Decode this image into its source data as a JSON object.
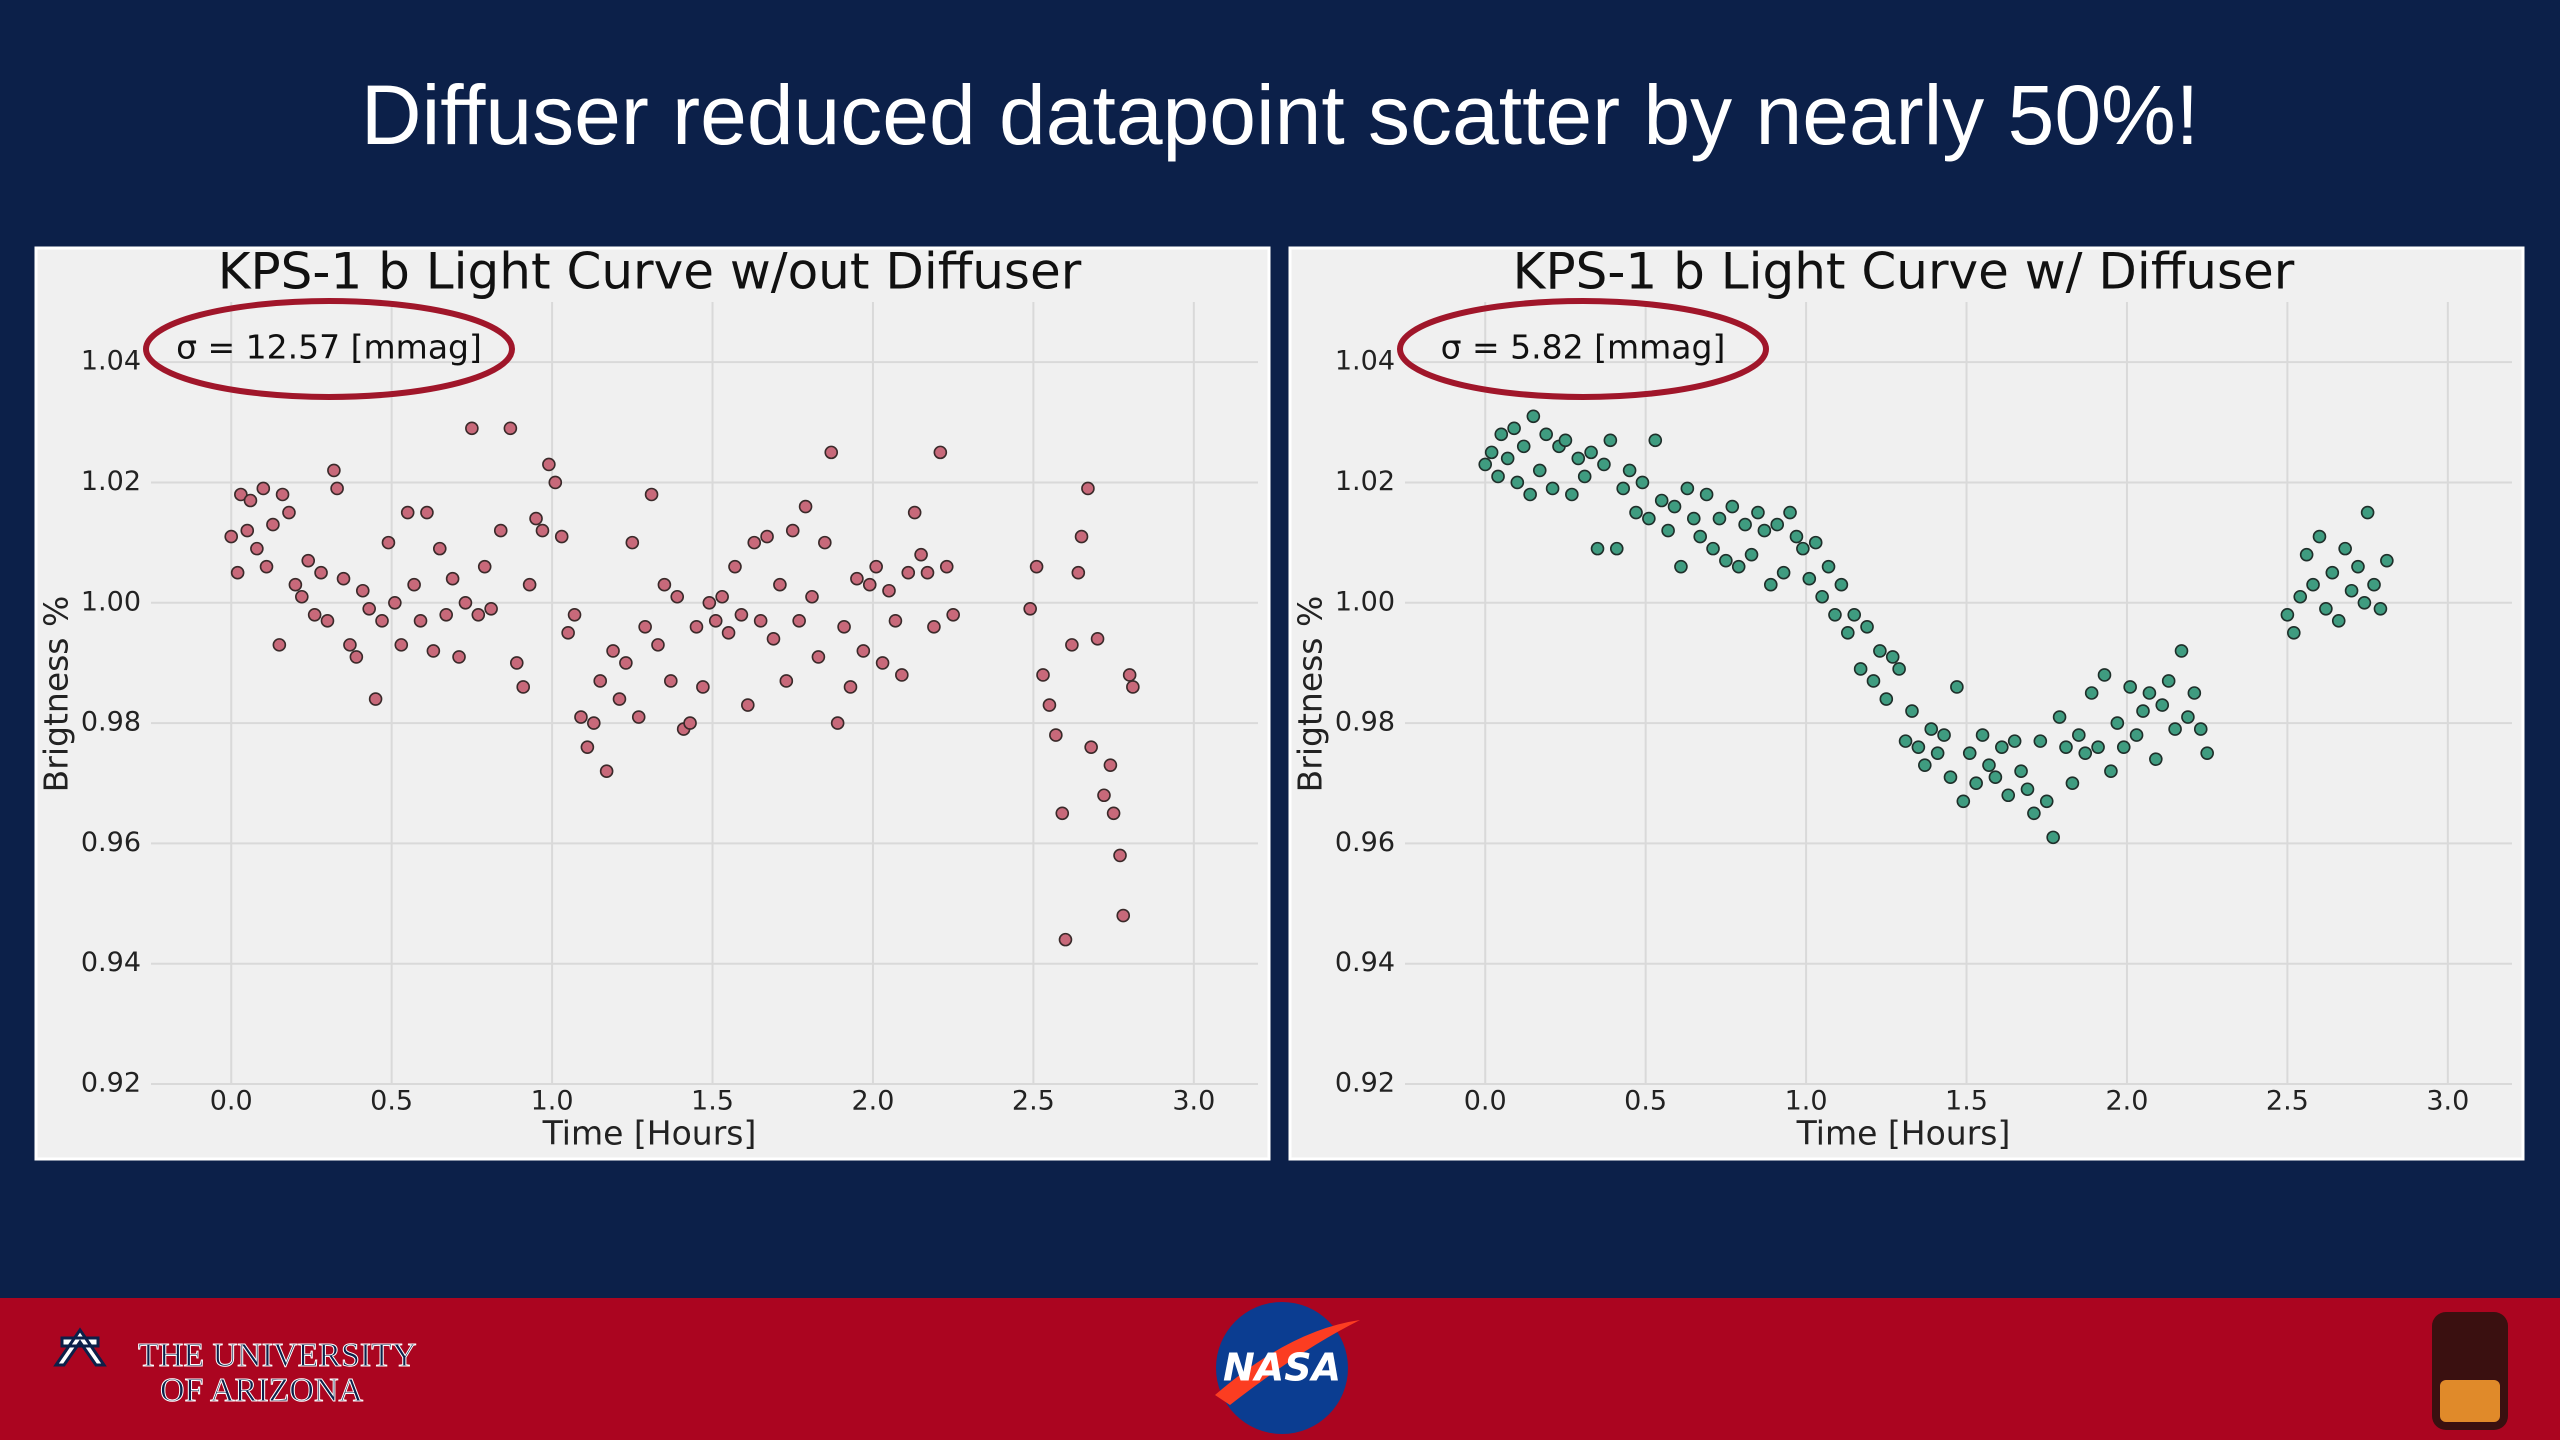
{
  "title": "Diffuser reduced datapoint scatter by nearly 50%!",
  "chart_data": [
    {
      "type": "scatter",
      "title": "KPS-1 b Light Curve w/out Diffuser",
      "annotation": "σ = 12.57 [mmag]",
      "xlabel": "Time [Hours]",
      "ylabel": "Brigtness %",
      "color": "#c8697a",
      "edgecolor": "#3a2a2a",
      "x": [
        0.0,
        0.02,
        0.03,
        0.05,
        0.06,
        0.08,
        0.1,
        0.11,
        0.13,
        0.15,
        0.16,
        0.18,
        0.2,
        0.22,
        0.24,
        0.26,
        0.28,
        0.3,
        0.32,
        0.33,
        0.35,
        0.37,
        0.39,
        0.41,
        0.43,
        0.45,
        0.47,
        0.49,
        0.51,
        0.53,
        0.55,
        0.57,
        0.59,
        0.61,
        0.63,
        0.65,
        0.67,
        0.69,
        0.71,
        0.73,
        0.75,
        0.77,
        0.79,
        0.81,
        0.84,
        0.87,
        0.89,
        0.91,
        0.93,
        0.95,
        0.97,
        0.99,
        1.01,
        1.03,
        1.05,
        1.07,
        1.09,
        1.11,
        1.13,
        1.15,
        1.17,
        1.19,
        1.21,
        1.23,
        1.25,
        1.27,
        1.29,
        1.31,
        1.33,
        1.35,
        1.37,
        1.39,
        1.41,
        1.43,
        1.45,
        1.47,
        1.49,
        1.51,
        1.53,
        1.55,
        1.57,
        1.59,
        1.61,
        1.63,
        1.65,
        1.67,
        1.69,
        1.71,
        1.73,
        1.75,
        1.77,
        1.79,
        1.81,
        1.83,
        1.85,
        1.87,
        1.89,
        1.91,
        1.93,
        1.95,
        1.97,
        1.99,
        2.01,
        2.03,
        2.05,
        2.07,
        2.09,
        2.11,
        2.13,
        2.15,
        2.17,
        2.19,
        2.21,
        2.23,
        2.25,
        2.49,
        2.51,
        2.53,
        2.55,
        2.57,
        2.59,
        2.6,
        2.62,
        2.64,
        2.65,
        2.67,
        2.68,
        2.7,
        2.72,
        2.74,
        2.75,
        2.77,
        2.78,
        2.8,
        2.81
      ],
      "values": [
        1.011,
        1.005,
        1.018,
        1.012,
        1.017,
        1.009,
        1.019,
        1.006,
        1.013,
        0.993,
        1.018,
        1.015,
        1.003,
        1.001,
        1.007,
        0.998,
        1.005,
        0.997,
        1.022,
        1.019,
        1.004,
        0.993,
        0.991,
        1.002,
        0.999,
        0.984,
        0.997,
        1.01,
        1.0,
        0.993,
        1.015,
        1.003,
        0.997,
        1.015,
        0.992,
        1.009,
        0.998,
        1.004,
        0.991,
        1.0,
        1.029,
        0.998,
        1.006,
        0.999,
        1.012,
        1.029,
        0.99,
        0.986,
        1.003,
        1.014,
        1.012,
        1.023,
        1.02,
        1.011,
        0.995,
        0.998,
        0.981,
        0.976,
        0.98,
        0.987,
        0.972,
        0.992,
        0.984,
        0.99,
        1.01,
        0.981,
        0.996,
        1.018,
        0.993,
        1.003,
        0.987,
        1.001,
        0.979,
        0.98,
        0.996,
        0.986,
        1.0,
        0.997,
        1.001,
        0.995,
        1.006,
        0.998,
        0.983,
        1.01,
        0.997,
        1.011,
        0.994,
        1.003,
        0.987,
        1.012,
        0.997,
        1.016,
        1.001,
        0.991,
        1.01,
        1.025,
        0.98,
        0.996,
        0.986,
        1.004,
        0.992,
        1.003,
        1.006,
        0.99,
        1.002,
        0.997,
        0.988,
        1.005,
        1.015,
        1.008,
        1.005,
        0.996,
        1.025,
        1.006,
        0.998,
        0.999,
        1.006,
        0.988,
        0.983,
        0.978,
        0.965,
        0.944,
        0.993,
        1.005,
        1.011,
        1.019,
        0.976,
        0.994,
        0.968,
        0.973,
        0.965,
        0.958,
        0.948,
        0.988,
        0.986
      ],
      "xlim": [
        -0.25,
        3.2
      ],
      "ylim": [
        0.92,
        1.05
      ],
      "xticks": [
        {
          "value": 0,
          "label": "0.0"
        },
        0.5,
        {
          "value": 1,
          "label": "1.0"
        },
        1.5,
        {
          "value": 2,
          "label": "2.0"
        },
        2.5,
        {
          "value": 3,
          "label": "3.0"
        }
      ],
      "yticks": [
        0.92,
        0.94,
        0.96,
        0.98,
        {
          "value": 1,
          "label": "1.00"
        },
        1.02,
        1.04
      ],
      "grid": true
    },
    {
      "type": "scatter",
      "title": "KPS-1 b Light Curve w/ Diffuser",
      "annotation": "σ = 5.82 [mmag]",
      "xlabel": "Time [Hours]",
      "ylabel": "Brigtness %",
      "color": "#3f9c80",
      "edgecolor": "#1f2f2a",
      "x": [
        0.0,
        0.02,
        0.04,
        0.05,
        0.07,
        0.09,
        0.1,
        0.12,
        0.14,
        0.15,
        0.17,
        0.19,
        0.21,
        0.23,
        0.25,
        0.27,
        0.29,
        0.31,
        0.33,
        0.35,
        0.37,
        0.39,
        0.41,
        0.43,
        0.45,
        0.47,
        0.49,
        0.51,
        0.53,
        0.55,
        0.57,
        0.59,
        0.61,
        0.63,
        0.65,
        0.67,
        0.69,
        0.71,
        0.73,
        0.75,
        0.77,
        0.79,
        0.81,
        0.83,
        0.85,
        0.87,
        0.89,
        0.91,
        0.93,
        0.95,
        0.97,
        0.99,
        1.01,
        1.03,
        1.05,
        1.07,
        1.09,
        1.11,
        1.13,
        1.15,
        1.17,
        1.19,
        1.21,
        1.23,
        1.25,
        1.27,
        1.29,
        1.31,
        1.33,
        1.35,
        1.37,
        1.39,
        1.41,
        1.43,
        1.45,
        1.47,
        1.49,
        1.51,
        1.53,
        1.55,
        1.57,
        1.59,
        1.61,
        1.63,
        1.65,
        1.67,
        1.69,
        1.71,
        1.73,
        1.75,
        1.77,
        1.79,
        1.81,
        1.83,
        1.85,
        1.87,
        1.89,
        1.91,
        1.93,
        1.95,
        1.97,
        1.99,
        2.01,
        2.03,
        2.05,
        2.07,
        2.09,
        2.11,
        2.13,
        2.15,
        2.17,
        2.19,
        2.21,
        2.23,
        2.25,
        2.5,
        2.52,
        2.54,
        2.56,
        2.58,
        2.6,
        2.62,
        2.64,
        2.66,
        2.68,
        2.7,
        2.72,
        2.74,
        2.75,
        2.77,
        2.79,
        2.81
      ],
      "values": [
        1.023,
        1.025,
        1.021,
        1.028,
        1.024,
        1.029,
        1.02,
        1.026,
        1.018,
        1.031,
        1.022,
        1.028,
        1.019,
        1.026,
        1.027,
        1.018,
        1.024,
        1.021,
        1.025,
        1.009,
        1.023,
        1.027,
        1.009,
        1.019,
        1.022,
        1.015,
        1.02,
        1.014,
        1.027,
        1.017,
        1.012,
        1.016,
        1.006,
        1.019,
        1.014,
        1.011,
        1.018,
        1.009,
        1.014,
        1.007,
        1.016,
        1.006,
        1.013,
        1.008,
        1.015,
        1.012,
        1.003,
        1.013,
        1.005,
        1.015,
        1.011,
        1.009,
        1.004,
        1.01,
        1.001,
        1.006,
        0.998,
        1.003,
        0.995,
        0.998,
        0.989,
        0.996,
        0.987,
        0.992,
        0.984,
        0.991,
        0.989,
        0.977,
        0.982,
        0.976,
        0.973,
        0.979,
        0.975,
        0.978,
        0.971,
        0.986,
        0.967,
        0.975,
        0.97,
        0.978,
        0.973,
        0.971,
        0.976,
        0.968,
        0.977,
        0.972,
        0.969,
        0.965,
        0.977,
        0.967,
        0.961,
        0.981,
        0.976,
        0.97,
        0.978,
        0.975,
        0.985,
        0.976,
        0.988,
        0.972,
        0.98,
        0.976,
        0.986,
        0.978,
        0.982,
        0.985,
        0.974,
        0.983,
        0.987,
        0.979,
        0.992,
        0.981,
        0.985,
        0.979,
        0.975,
        0.998,
        0.995,
        1.001,
        1.008,
        1.003,
        1.011,
        0.999,
        1.005,
        0.997,
        1.009,
        1.002,
        1.006,
        1.0,
        1.015,
        1.003,
        0.999,
        1.007
      ],
      "xlim": [
        -0.25,
        3.2
      ],
      "ylim": [
        0.92,
        1.05
      ],
      "xticks": [
        {
          "value": 0,
          "label": "0.0"
        },
        0.5,
        {
          "value": 1,
          "label": "1.0"
        },
        1.5,
        {
          "value": 2,
          "label": "2.0"
        },
        2.5,
        {
          "value": 3,
          "label": "3.0"
        }
      ],
      "yticks": [
        0.92,
        0.94,
        0.96,
        0.98,
        {
          "value": 1,
          "label": "1.00"
        },
        1.02,
        1.04
      ],
      "grid": true
    }
  ],
  "footer": {
    "university": [
      "THE UNIVERSITY",
      "OF ARIZONA"
    ],
    "agency": "NASA"
  }
}
